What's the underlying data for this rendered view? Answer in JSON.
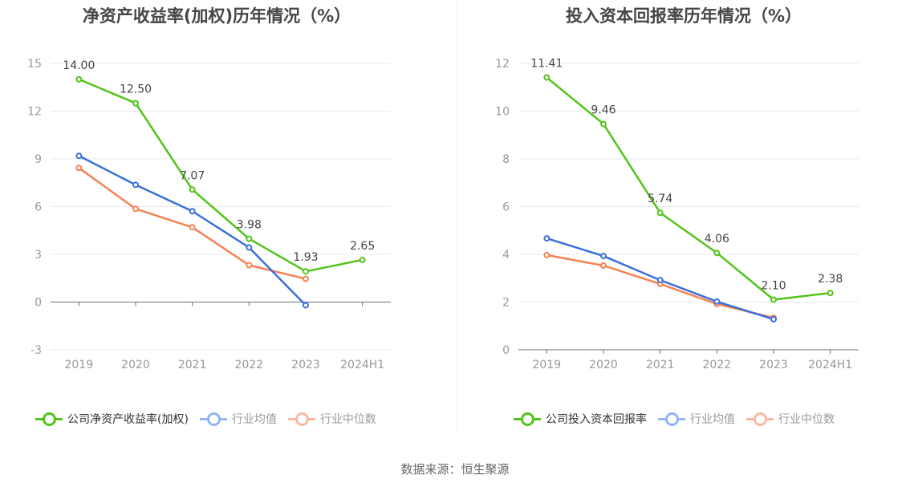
{
  "footer": {
    "source": "数据来源：恒生聚源"
  },
  "colors": {
    "company": "#52c41a",
    "avg": "#3a6fdc",
    "median": "#f58253",
    "avg_legend": "#94b4f5",
    "median_legend": "#f9b9a0",
    "grid": "#e6eaf4",
    "axis": "#6e7079"
  },
  "chart_data": [
    {
      "type": "line",
      "title": "净资产收益率(加权)历年情况（%）",
      "xlabel": "",
      "ylabel": "",
      "categories": [
        "2019",
        "2020",
        "2021",
        "2022",
        "2023",
        "2024H1"
      ],
      "ylim": [
        -3,
        15
      ],
      "yticks": [
        "15",
        "12",
        "9",
        "6",
        "3",
        "0",
        "-3"
      ],
      "ytick_values": [
        15,
        12,
        9,
        6,
        3,
        0,
        -3
      ],
      "grid": true,
      "legend_position": "bottom",
      "series": [
        {
          "name": "公司净资产收益率(加权)",
          "key": "company",
          "values": [
            14.0,
            12.5,
            7.07,
            3.98,
            1.93,
            2.65
          ],
          "labels": [
            "14.00",
            "12.50",
            "7.07",
            "3.98",
            "1.93",
            "2.65"
          ]
        },
        {
          "name": "行业均值",
          "key": "avg",
          "values": [
            9.19,
            7.37,
            5.71,
            3.43,
            -0.2,
            null
          ]
        },
        {
          "name": "行业中位数",
          "key": "median",
          "values": [
            8.43,
            5.86,
            4.7,
            2.32,
            1.46,
            null
          ]
        }
      ]
    },
    {
      "type": "line",
      "title": "投入资本回报率历年情况（%）",
      "xlabel": "",
      "ylabel": "",
      "categories": [
        "2019",
        "2020",
        "2021",
        "2022",
        "2023",
        "2024H1"
      ],
      "ylim": [
        0,
        12
      ],
      "yticks": [
        "12",
        "10",
        "8",
        "6",
        "4",
        "2",
        "0"
      ],
      "ytick_values": [
        12,
        10,
        8,
        6,
        4,
        2,
        0
      ],
      "grid": true,
      "legend_position": "bottom",
      "series": [
        {
          "name": "公司投入资本回报率",
          "key": "company",
          "values": [
            11.41,
            9.46,
            5.74,
            4.06,
            2.1,
            2.38
          ],
          "labels": [
            "11.41",
            "9.46",
            "5.74",
            "4.06",
            "2.10",
            "2.38"
          ]
        },
        {
          "name": "行业均值",
          "key": "avg",
          "values": [
            4.67,
            3.93,
            2.92,
            2.02,
            1.28,
            null
          ]
        },
        {
          "name": "行业中位数",
          "key": "median",
          "values": [
            3.97,
            3.53,
            2.76,
            1.92,
            1.34,
            null
          ]
        }
      ]
    }
  ]
}
